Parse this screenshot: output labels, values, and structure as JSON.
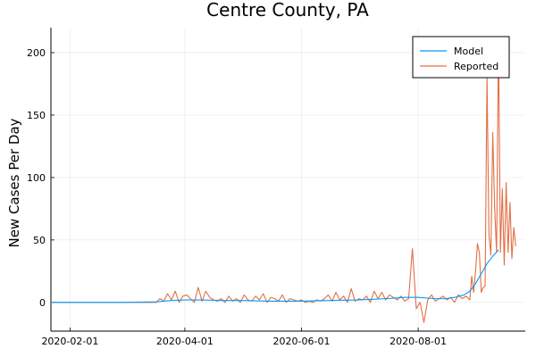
{
  "chart_data": {
    "type": "line",
    "title": "Centre County, PA",
    "xlabel": "",
    "ylabel": "New Cases Per Day",
    "x_is_date": true,
    "xlim": [
      "2020-01-22",
      "2020-09-26"
    ],
    "ylim": [
      -23,
      220
    ],
    "x_ticks": [
      "2020-02-01",
      "2020-04-01",
      "2020-06-01",
      "2020-08-01"
    ],
    "y_ticks": [
      0,
      50,
      100,
      150,
      200
    ],
    "grid": true,
    "legend": {
      "position": "top-right",
      "entries": [
        "Model",
        "Reported"
      ]
    },
    "colors": {
      "Model": "#009AFA",
      "Reported": "#E26F46"
    },
    "series": [
      {
        "name": "Model",
        "x": [
          "2020-01-22",
          "2020-03-01",
          "2020-03-17",
          "2020-03-25",
          "2020-04-01",
          "2020-04-10",
          "2020-04-20",
          "2020-05-01",
          "2020-05-15",
          "2020-06-01",
          "2020-06-15",
          "2020-07-01",
          "2020-07-15",
          "2020-07-25",
          "2020-08-01",
          "2020-08-10",
          "2020-08-15",
          "2020-08-20",
          "2020-08-25",
          "2020-08-28",
          "2020-08-31",
          "2020-09-03",
          "2020-09-06",
          "2020-09-09",
          "2020-09-12"
        ],
        "y": [
          0,
          0,
          0.5,
          1.5,
          2,
          2,
          1.5,
          1.5,
          1,
          1,
          1.5,
          2,
          3,
          4,
          4,
          3,
          3,
          4,
          6,
          9,
          15,
          23,
          31,
          37,
          42
        ]
      },
      {
        "name": "Reported",
        "x": [
          "2020-01-22",
          "2020-03-15",
          "2020-03-17",
          "2020-03-19",
          "2020-03-21",
          "2020-03-23",
          "2020-03-25",
          "2020-03-27",
          "2020-03-29",
          "2020-03-31",
          "2020-04-02",
          "2020-04-04",
          "2020-04-06",
          "2020-04-08",
          "2020-04-10",
          "2020-04-12",
          "2020-04-14",
          "2020-04-16",
          "2020-04-18",
          "2020-04-20",
          "2020-04-22",
          "2020-04-24",
          "2020-04-26",
          "2020-04-28",
          "2020-04-30",
          "2020-05-02",
          "2020-05-04",
          "2020-05-06",
          "2020-05-08",
          "2020-05-10",
          "2020-05-12",
          "2020-05-14",
          "2020-05-16",
          "2020-05-18",
          "2020-05-20",
          "2020-05-22",
          "2020-05-24",
          "2020-05-26",
          "2020-05-28",
          "2020-05-30",
          "2020-06-01",
          "2020-06-03",
          "2020-06-05",
          "2020-06-07",
          "2020-06-09",
          "2020-06-11",
          "2020-06-13",
          "2020-06-15",
          "2020-06-17",
          "2020-06-19",
          "2020-06-21",
          "2020-06-23",
          "2020-06-25",
          "2020-06-27",
          "2020-06-29",
          "2020-07-01",
          "2020-07-03",
          "2020-07-05",
          "2020-07-07",
          "2020-07-09",
          "2020-07-11",
          "2020-07-13",
          "2020-07-15",
          "2020-07-17",
          "2020-07-19",
          "2020-07-21",
          "2020-07-23",
          "2020-07-25",
          "2020-07-27",
          "2020-07-29",
          "2020-07-31",
          "2020-08-02",
          "2020-08-04",
          "2020-08-06",
          "2020-08-08",
          "2020-08-10",
          "2020-08-12",
          "2020-08-14",
          "2020-08-16",
          "2020-08-18",
          "2020-08-20",
          "2020-08-22",
          "2020-08-24",
          "2020-08-26",
          "2020-08-28",
          "2020-08-29",
          "2020-08-30",
          "2020-08-31",
          "2020-09-01",
          "2020-09-02",
          "2020-09-03",
          "2020-09-04",
          "2020-09-05",
          "2020-09-06",
          "2020-09-07",
          "2020-09-08",
          "2020-09-09",
          "2020-09-10",
          "2020-09-11",
          "2020-09-12",
          "2020-09-13",
          "2020-09-14",
          "2020-09-15",
          "2020-09-16",
          "2020-09-17",
          "2020-09-18",
          "2020-09-19",
          "2020-09-20",
          "2020-09-21"
        ],
        "y": [
          0,
          0,
          0,
          3,
          1,
          7,
          2,
          9,
          0,
          5,
          6,
          3,
          0,
          12,
          1,
          9,
          4,
          2,
          1,
          3,
          0,
          5,
          1,
          3,
          0,
          6,
          2,
          1,
          5,
          2,
          7,
          0,
          4,
          3,
          1,
          6,
          0,
          3,
          2,
          1,
          2,
          0,
          1,
          0,
          2,
          1,
          3,
          6,
          1,
          8,
          2,
          5,
          0,
          11,
          1,
          3,
          2,
          5,
          0,
          9,
          3,
          8,
          2,
          6,
          4,
          2,
          5,
          1,
          3,
          43,
          -5,
          0,
          -16,
          2,
          6,
          1,
          3,
          5,
          2,
          4,
          0,
          6,
          3,
          5,
          2,
          21,
          8,
          25,
          47,
          40,
          8,
          12,
          13,
          181,
          54,
          38,
          136,
          75,
          40,
          212,
          40,
          91,
          30,
          96,
          40,
          80,
          35,
          60,
          45
        ]
      }
    ]
  }
}
